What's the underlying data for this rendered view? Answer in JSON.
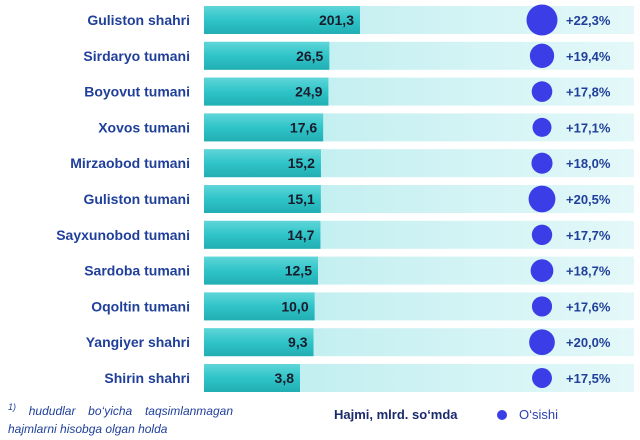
{
  "chart_data": {
    "type": "bar",
    "categories": [
      "Guliston shahri",
      "Sirdaryo tumani",
      "Boyovut tumani",
      "Xovos tumani",
      "Mirzaobod tumani",
      "Guliston tumani",
      "Sayxunobod tumani",
      "Sardoba tumani",
      "Oqoltin tumani",
      "Yangiyer shahri",
      "Shirin shahri"
    ],
    "values": [
      201.3,
      26.5,
      24.9,
      17.6,
      15.2,
      15.1,
      14.7,
      12.5,
      10.0,
      9.3,
      3.8
    ],
    "value_labels": [
      "201,3",
      "26,5",
      "24,9",
      "17,6",
      "15,2",
      "15,1",
      "14,7",
      "12,5",
      "10,0",
      "9,3",
      "3,8"
    ],
    "growth_values": [
      22.3,
      19.4,
      17.8,
      17.1,
      18.0,
      20.5,
      17.7,
      18.7,
      17.6,
      20.0,
      17.5
    ],
    "growth_labels": [
      "+22,3%",
      "+19,4%",
      "+17,8%",
      "+17,1%",
      "+18,0%",
      "+20,5%",
      "+17,7%",
      "+18,7%",
      "+17,6%",
      "+20,0%",
      "+17,5%"
    ],
    "legend": {
      "volume": "Hajmi, mlrd. so‘mda",
      "growth": "O‘sishi"
    },
    "footnote_mark": "1)",
    "footnote": "hududlar bo‘yicha taqsimlanmagan hajmlarni hisobga olgan holda"
  },
  "colors": {
    "bar_fill": "#2fc4c8",
    "track_fill": "#c8f0f1",
    "label_text": "#1f3f9a",
    "bubble": "#3b3ee6"
  }
}
